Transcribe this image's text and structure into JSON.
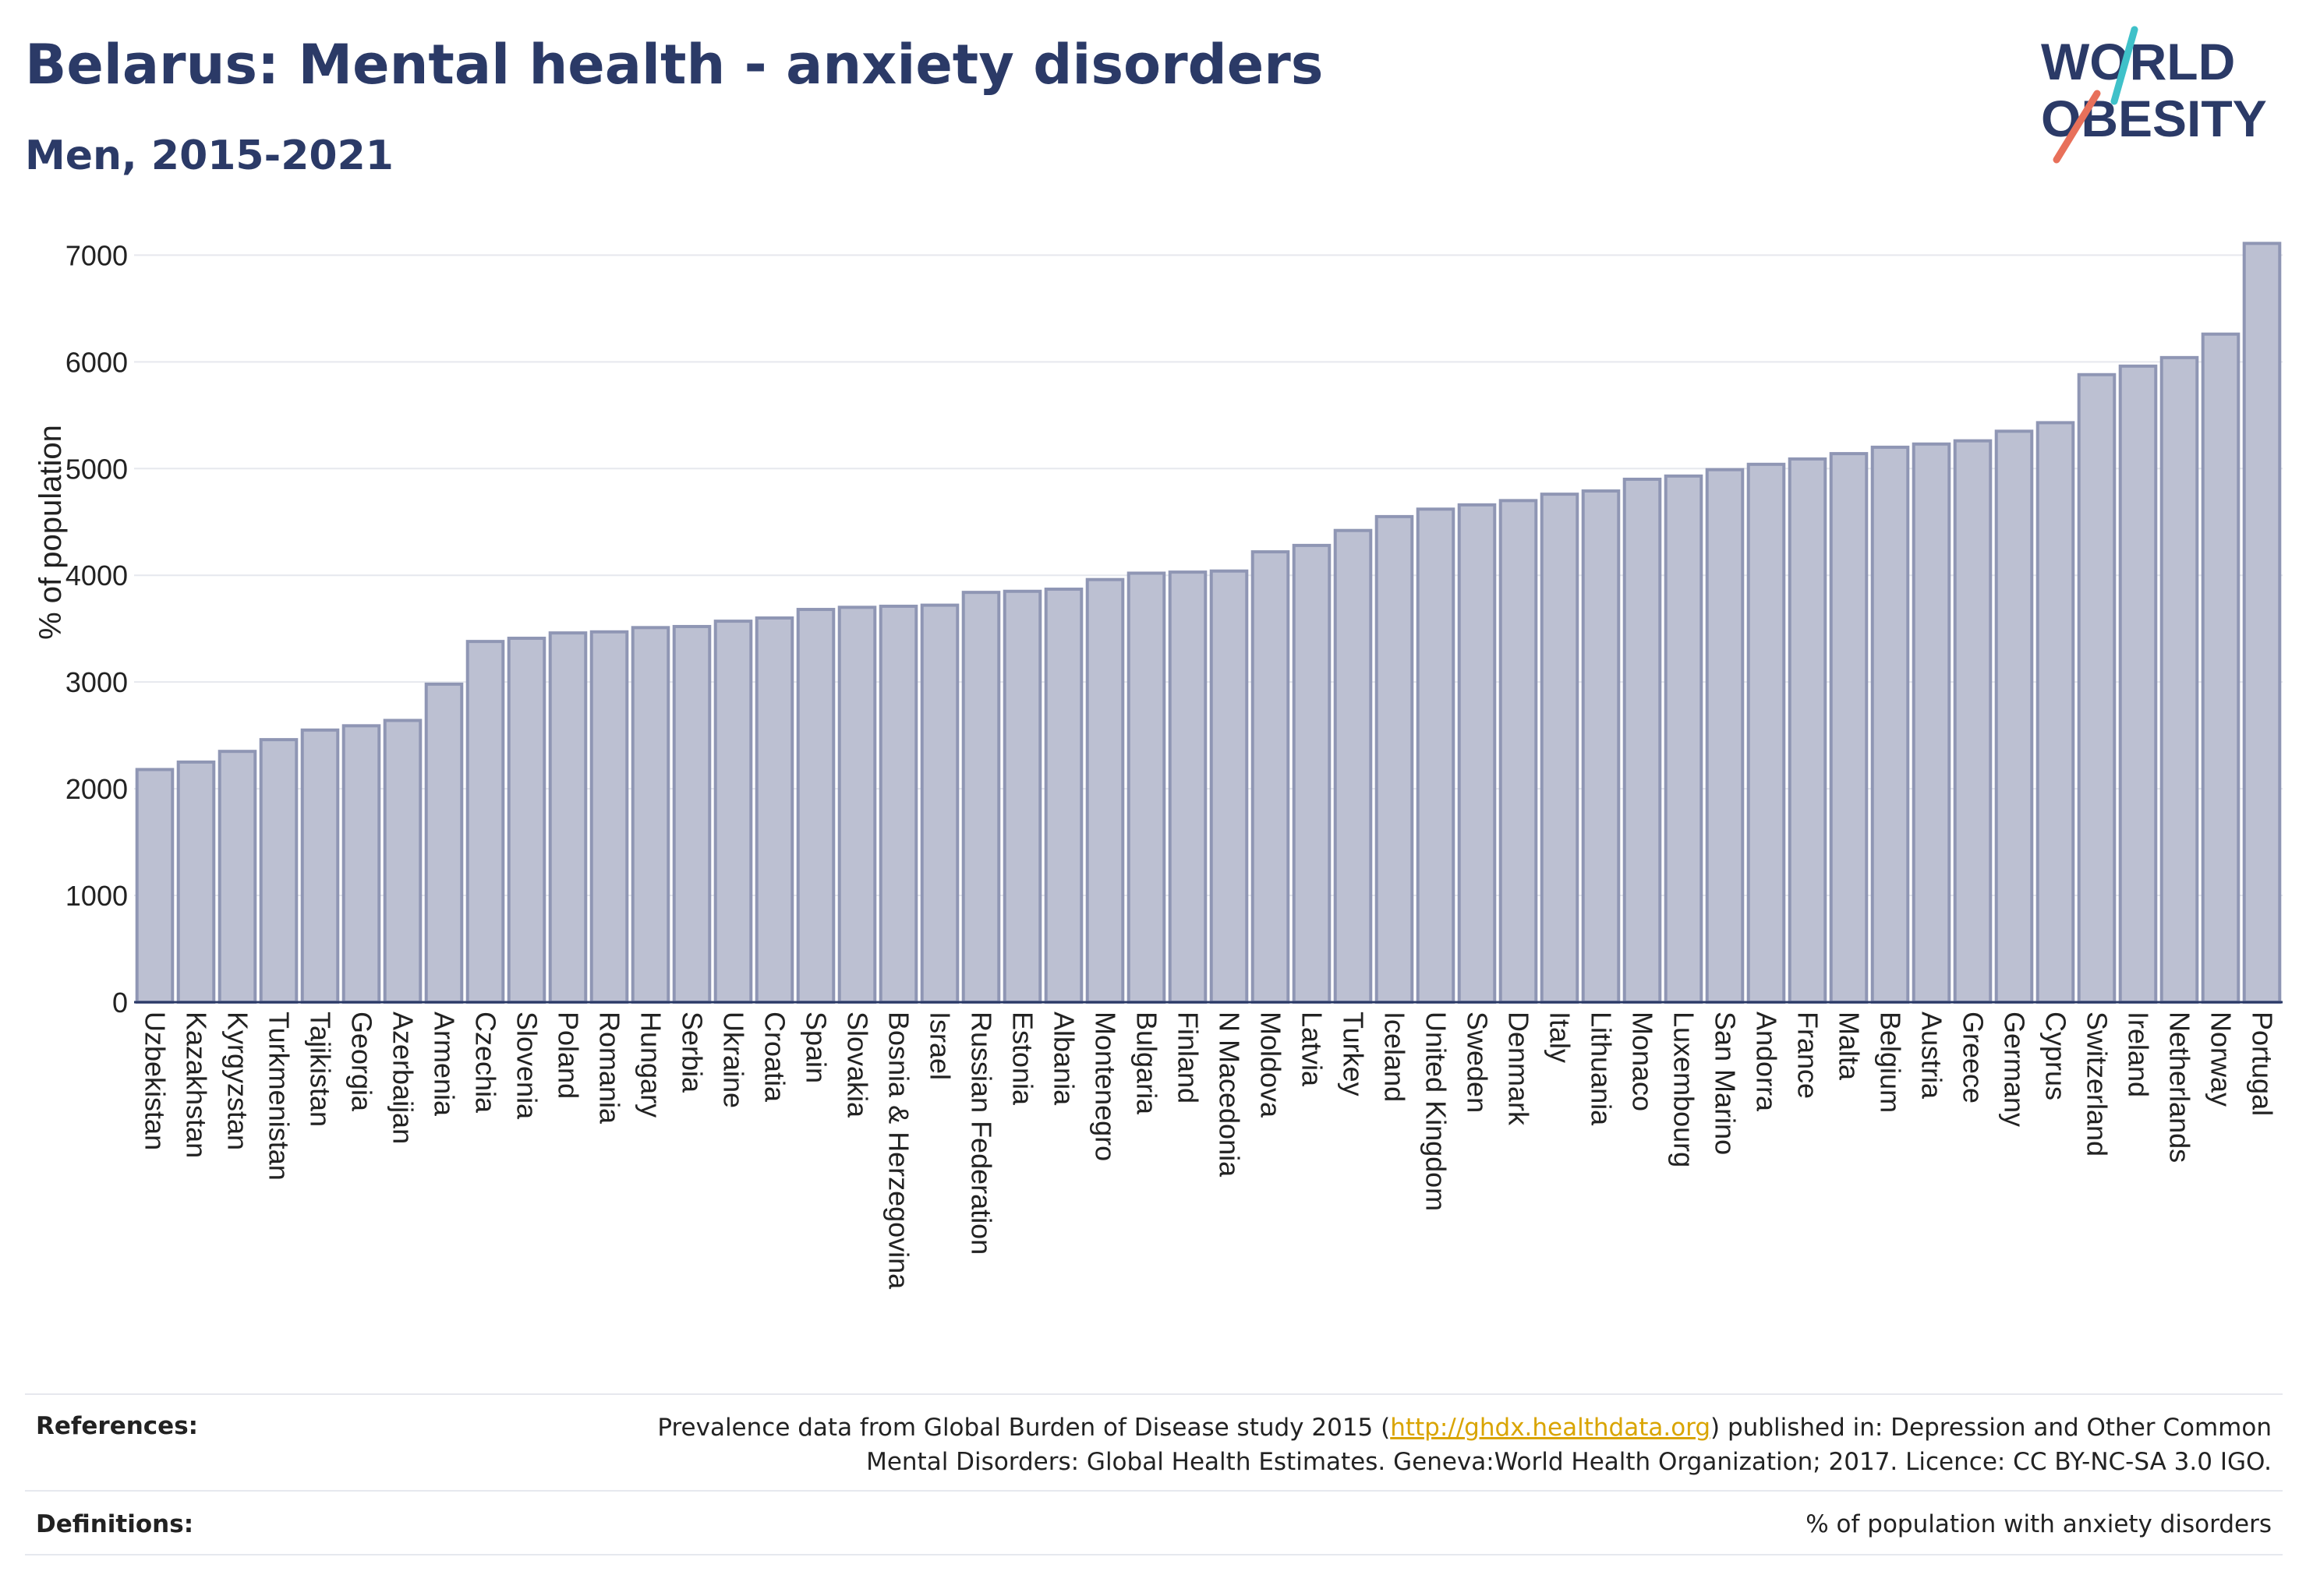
{
  "title": "Belarus: Mental health - anxiety disorders",
  "subtitle": "Men, 2015-2021",
  "logo": {
    "line1": "WORLD",
    "line2": "OBESITY"
  },
  "colors": {
    "bar_fill": "#bcc0d2",
    "bar_stroke": "#8f96b4",
    "text": "#2b3a67",
    "grid": "#e6e8ee",
    "accent_red": "#e8705a",
    "accent_teal": "#3fc1c9",
    "link": "#d9a400"
  },
  "chart_data": {
    "type": "bar",
    "ylabel": "% of population",
    "ylim": [
      0,
      7200
    ],
    "yticks": [
      0,
      1000,
      2000,
      3000,
      4000,
      5000,
      6000,
      7000
    ],
    "grid": true,
    "categories": [
      "Uzbekistan",
      "Kazakhstan",
      "Kyrgyzstan",
      "Turkmenistan",
      "Tajikistan",
      "Georgia",
      "Azerbaijan",
      "Armenia",
      "Czechia",
      "Slovenia",
      "Poland",
      "Romania",
      "Hungary",
      "Serbia",
      "Ukraine",
      "Croatia",
      "Spain",
      "Slovakia",
      "Bosnia & Herzegovina",
      "Israel",
      "Russian Federation",
      "Estonia",
      "Albania",
      "Montenegro",
      "Bulgaria",
      "Finland",
      "N Macedonia",
      "Moldova",
      "Latvia",
      "Turkey",
      "Iceland",
      "United Kingdom",
      "Sweden",
      "Denmark",
      "Italy",
      "Lithuania",
      "Monaco",
      "Luxembourg",
      "San Marino",
      "Andorra",
      "France",
      "Malta",
      "Belgium",
      "Austria",
      "Greece",
      "Germany",
      "Cyprus",
      "Switzerland",
      "Ireland",
      "Netherlands",
      "Norway",
      "Portugal"
    ],
    "values": [
      2180,
      2250,
      2350,
      2460,
      2550,
      2590,
      2640,
      2980,
      3380,
      3410,
      3460,
      3470,
      3510,
      3520,
      3570,
      3600,
      3680,
      3700,
      3710,
      3720,
      3840,
      3850,
      3870,
      3960,
      4020,
      4030,
      4040,
      4220,
      4280,
      4420,
      4550,
      4620,
      4660,
      4700,
      4760,
      4790,
      4900,
      4930,
      4990,
      5040,
      5090,
      5140,
      5200,
      5230,
      5260,
      5350,
      5430,
      5880,
      5960,
      6040,
      6260,
      7110
    ]
  },
  "references": {
    "label": "References:",
    "line1_pre": "Prevalence data from Global Burden of Disease study 2015 (",
    "link": "http://ghdx.healthdata.org",
    "line1_post": ") published in: Depression and Other Common",
    "line2": "Mental Disorders: Global Health Estimates. Geneva:World Health Organization; 2017. Licence: CC BY-NC-SA 3.0 IGO."
  },
  "definitions": {
    "label": "Definitions:",
    "text": "% of population with anxiety disorders"
  }
}
